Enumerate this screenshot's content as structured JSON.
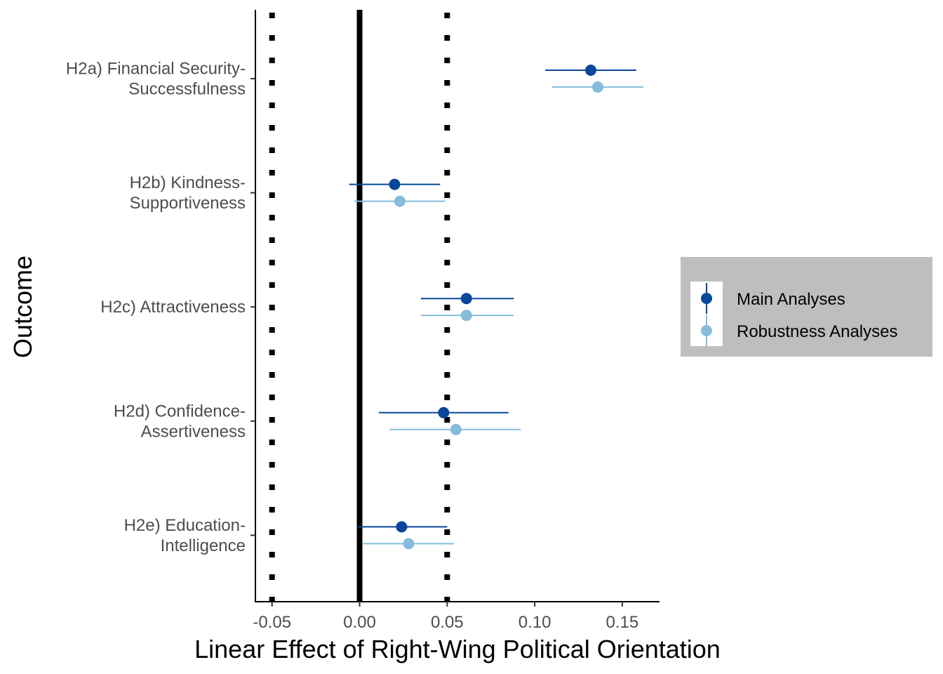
{
  "chart_data": {
    "type": "scatter",
    "subtype": "forest-plot-with-error-bars",
    "title": "",
    "xlabel": "Linear Effect of Right-Wing Political Orientation",
    "ylabel": "Outcome",
    "xlim": [
      -0.06,
      0.172
    ],
    "x_ticks": [
      -0.05,
      0.0,
      0.05,
      0.1,
      0.15
    ],
    "x_tick_labels": [
      "-0.05",
      "0.00",
      "0.05",
      "0.10",
      "0.15"
    ],
    "reference_lines": {
      "solid": [
        0.0
      ],
      "dotted": [
        -0.05,
        0.05
      ]
    },
    "grid": false,
    "legend_position": "right",
    "categories": [
      {
        "id": "H2a",
        "lines": [
          "H2a) Financial Security-",
          "Successfulness"
        ]
      },
      {
        "id": "H2b",
        "lines": [
          "H2b) Kindness-",
          "Supportiveness"
        ]
      },
      {
        "id": "H2c",
        "lines": [
          "H2c) Attractiveness"
        ]
      },
      {
        "id": "H2d",
        "lines": [
          "H2d) Confidence-",
          "Assertiveness"
        ]
      },
      {
        "id": "H2e",
        "lines": [
          "H2e) Education-",
          "Intelligence"
        ]
      }
    ],
    "series": [
      {
        "name": "Main Analyses",
        "color": "#08479a",
        "estimates": [
          0.132,
          0.02,
          0.061,
          0.048,
          0.024
        ],
        "ci_lower": [
          0.106,
          -0.006,
          0.035,
          0.011,
          -0.001
        ],
        "ci_upper": [
          0.158,
          0.046,
          0.088,
          0.085,
          0.05
        ]
      },
      {
        "name": "Robustness Analyses",
        "color": "#85bcdc",
        "estimates": [
          0.136,
          0.023,
          0.061,
          0.055,
          0.028
        ],
        "ci_lower": [
          0.11,
          -0.003,
          0.035,
          0.017,
          0.002
        ],
        "ci_upper": [
          0.162,
          0.049,
          0.088,
          0.092,
          0.054
        ]
      }
    ]
  }
}
